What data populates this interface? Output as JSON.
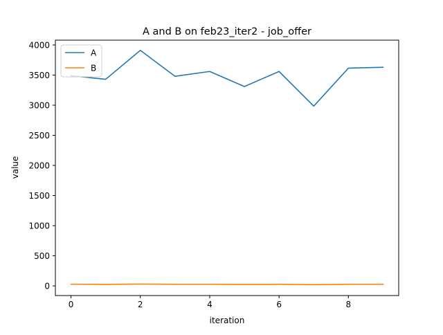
{
  "chart_data": {
    "type": "line",
    "title": "A and B on feb23_iter2 - job_offer",
    "xlabel": "iteration",
    "ylabel": "value",
    "x": [
      0,
      1,
      2,
      3,
      4,
      5,
      6,
      7,
      8,
      9
    ],
    "xlim": [
      -0.45,
      9.45
    ],
    "ylim": [
      -160,
      4080
    ],
    "xticks": [
      0,
      2,
      4,
      6,
      8
    ],
    "yticks": [
      0,
      500,
      1000,
      1500,
      2000,
      2500,
      3000,
      3500,
      4000
    ],
    "grid": false,
    "legend_position": "top-left",
    "series": [
      {
        "name": "A",
        "color": "#1f77b4",
        "values": [
          3490,
          3430,
          3910,
          3480,
          3560,
          3310,
          3560,
          2985,
          3615,
          3630
        ]
      },
      {
        "name": "B",
        "color": "#ff7f0e",
        "values": [
          28,
          26,
          30,
          27,
          28,
          26,
          27,
          22,
          27,
          28
        ]
      }
    ]
  }
}
